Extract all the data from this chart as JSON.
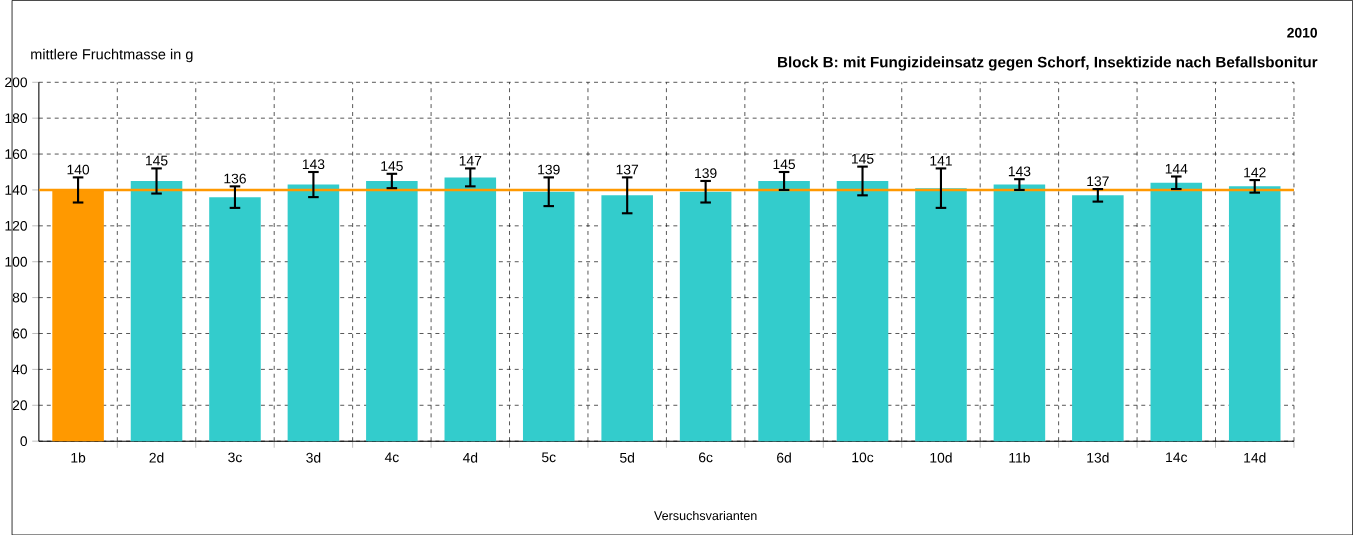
{
  "chart_data": {
    "type": "bar",
    "title": "2010",
    "subtitle": "Block B: mit Fungizideinsatz gegen Schorf, Insektizide nach Befallsbonitur",
    "ylabel": "mittlere Fruchtmasse in g",
    "xlabel": "Versuchsvarianten",
    "categories": [
      "1b",
      "2d",
      "3c",
      "3d",
      "4c",
      "4d",
      "5c",
      "5d",
      "6c",
      "6d",
      "10c",
      "10d",
      "11b",
      "13d",
      "14c",
      "14d"
    ],
    "values": [
      140,
      145,
      136,
      143,
      145,
      147,
      139,
      137,
      139,
      145,
      145,
      141,
      143,
      137,
      144,
      142
    ],
    "errors": [
      7,
      7,
      6,
      7,
      4,
      5,
      8,
      10,
      6,
      5,
      8,
      11,
      3,
      3.5,
      3.5,
      3.5
    ],
    "colors": [
      "#ff9900",
      "#33cccc",
      "#33cccc",
      "#33cccc",
      "#33cccc",
      "#33cccc",
      "#33cccc",
      "#33cccc",
      "#33cccc",
      "#33cccc",
      "#33cccc",
      "#33cccc",
      "#33cccc",
      "#33cccc",
      "#33cccc",
      "#33cccc"
    ],
    "data_labels": true,
    "ylim": [
      0,
      200
    ],
    "yticks": [
      0,
      20,
      40,
      60,
      80,
      100,
      120,
      140,
      160,
      180,
      200
    ],
    "grid": true,
    "ref_lines": [
      {
        "axis": "y",
        "value": 140,
        "color": "#ff9900"
      }
    ]
  }
}
